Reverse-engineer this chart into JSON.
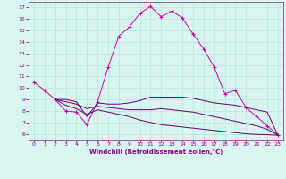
{
  "xlabel": "Windchill (Refroidissement éolien,°C)",
  "background_color": "#d8f5f0",
  "grid_color": "#b8e8e0",
  "line_color": "#cc00aa",
  "spine_color": "#884488",
  "xlim": [
    -0.5,
    23.5
  ],
  "ylim": [
    5.5,
    17.5
  ],
  "xticks": [
    0,
    1,
    2,
    3,
    4,
    5,
    6,
    7,
    8,
    9,
    10,
    11,
    12,
    13,
    14,
    15,
    16,
    17,
    18,
    19,
    20,
    21,
    22,
    23
  ],
  "yticks": [
    6,
    7,
    8,
    9,
    10,
    11,
    12,
    13,
    14,
    15,
    16,
    17
  ],
  "line1_x": [
    0,
    1,
    2,
    3,
    4,
    5,
    6,
    7,
    8,
    9,
    10,
    11,
    12,
    13,
    14,
    15,
    16,
    17,
    18,
    19,
    20,
    21,
    22,
    23
  ],
  "line1_y": [
    10.5,
    9.8,
    9.0,
    8.0,
    7.9,
    6.8,
    8.8,
    11.8,
    14.5,
    15.3,
    16.5,
    17.1,
    16.2,
    16.7,
    16.1,
    14.7,
    13.4,
    11.8,
    9.5,
    9.8,
    8.3,
    7.5,
    6.7,
    5.9
  ],
  "line2_x": [
    2,
    3,
    4,
    5,
    6,
    7,
    8,
    9,
    10,
    11,
    12,
    13,
    14,
    15,
    16,
    17,
    18,
    19,
    20,
    21,
    22,
    23
  ],
  "line2_y": [
    9.0,
    9.0,
    8.8,
    7.5,
    8.7,
    8.6,
    8.6,
    8.7,
    8.9,
    9.2,
    9.2,
    9.2,
    9.2,
    9.1,
    8.9,
    8.7,
    8.6,
    8.5,
    8.3,
    8.1,
    7.9,
    5.9
  ],
  "line3_x": [
    2,
    3,
    4,
    5,
    6,
    7,
    8,
    9,
    10,
    11,
    12,
    13,
    14,
    15,
    16,
    17,
    18,
    19,
    20,
    21,
    22,
    23
  ],
  "line3_y": [
    9.0,
    8.8,
    8.6,
    8.2,
    8.4,
    8.3,
    8.2,
    8.1,
    8.1,
    8.1,
    8.2,
    8.1,
    8.0,
    7.9,
    7.7,
    7.5,
    7.3,
    7.1,
    6.9,
    6.7,
    6.4,
    5.9
  ],
  "line4_x": [
    2,
    3,
    4,
    5,
    6,
    7,
    8,
    9,
    10,
    11,
    12,
    13,
    14,
    15,
    16,
    17,
    18,
    19,
    20,
    21,
    22,
    23
  ],
  "line4_y": [
    9.0,
    8.5,
    8.2,
    7.7,
    8.1,
    7.9,
    7.7,
    7.5,
    7.2,
    7.0,
    6.8,
    6.7,
    6.6,
    6.5,
    6.4,
    6.3,
    6.2,
    6.1,
    6.0,
    5.95,
    5.92,
    5.88
  ]
}
